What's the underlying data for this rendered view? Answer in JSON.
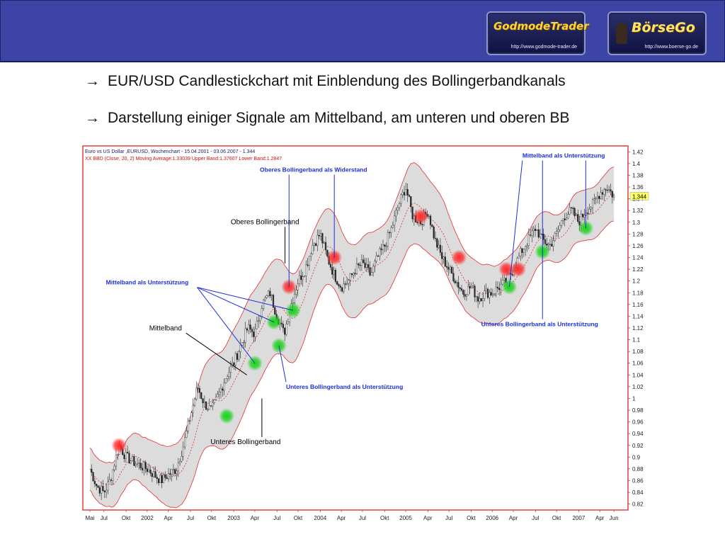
{
  "header": {
    "logo1": {
      "name": "GodmodeTrader",
      "url": "http://www.godmode-trader.de"
    },
    "logo2": {
      "name": "BörseGo",
      "url": "http://www.boerse-go.de"
    }
  },
  "bullets": [
    {
      "arrow": "→",
      "text": "EUR/USD Candlestickchart mit Einblendung des Bollingerbandkanals"
    },
    {
      "arrow": "→",
      "text": "Darstellung einiger Signale am Mittelband, am unteren und oberen BB"
    }
  ],
  "chart_data": {
    "type": "candlestick",
    "title": "Euro vs US Dollar ,EURUSD, Wochenchart - 15.04.2001 - 03.06.2007 - 1.344",
    "subtitle": "XX BBD (Close, 20, 2) Moving Average:1.33039 Upper Band:1.37607 Lower Band:1.2847",
    "last_value_label": "1.344",
    "y_ticks": [
      "1.42",
      "1.4",
      "1.38",
      "1.36",
      "1.34",
      "1.32",
      "1.3",
      "1.28",
      "1.26",
      "1.24",
      "1.22",
      "1.2",
      "1.18",
      "1.16",
      "1.14",
      "1.12",
      "1.1",
      "1.08",
      "1.06",
      "1.04",
      "1.02",
      "1",
      "0.98",
      "0.96",
      "0.94",
      "0.92",
      "0.9",
      "0.88",
      "0.86",
      "0.84",
      "0.82"
    ],
    "ylim": [
      0.81,
      1.43
    ],
    "x_ticks": [
      {
        "label": "Mai",
        "t": 0.0
      },
      {
        "label": "Jul",
        "t": 0.14
      },
      {
        "label": "Okt",
        "t": 0.36
      },
      {
        "label": "2002",
        "t": 0.57
      },
      {
        "label": "Apr",
        "t": 0.78
      },
      {
        "label": "Jul",
        "t": 1.0
      },
      {
        "label": "Okt",
        "t": 1.21
      },
      {
        "label": "2003",
        "t": 1.43
      },
      {
        "label": "Apr",
        "t": 1.64
      },
      {
        "label": "Jul",
        "t": 1.86
      },
      {
        "label": "Okt",
        "t": 2.07
      },
      {
        "label": "2004",
        "t": 2.29
      },
      {
        "label": "Apr",
        "t": 2.5
      },
      {
        "label": "Jul",
        "t": 2.71
      },
      {
        "label": "Okt",
        "t": 2.93
      },
      {
        "label": "2005",
        "t": 3.14
      },
      {
        "label": "Apr",
        "t": 3.36
      },
      {
        "label": "Jul",
        "t": 3.57
      },
      {
        "label": "Okt",
        "t": 3.79
      },
      {
        "label": "2006",
        "t": 4.0
      },
      {
        "label": "Apr",
        "t": 4.21
      },
      {
        "label": "Jul",
        "t": 4.43
      },
      {
        "label": "Okt",
        "t": 4.64
      },
      {
        "label": "2007",
        "t": 4.86
      },
      {
        "label": "Apr",
        "t": 5.07
      },
      {
        "label": "Jun",
        "t": 5.21
      }
    ],
    "t_range": [
      -0.07,
      5.35
    ],
    "price_path": [
      [
        0.0,
        0.88
      ],
      [
        0.07,
        0.85
      ],
      [
        0.14,
        0.84
      ],
      [
        0.2,
        0.86
      ],
      [
        0.29,
        0.92
      ],
      [
        0.36,
        0.9
      ],
      [
        0.45,
        0.89
      ],
      [
        0.57,
        0.88
      ],
      [
        0.64,
        0.87
      ],
      [
        0.71,
        0.86
      ],
      [
        0.78,
        0.87
      ],
      [
        0.86,
        0.88
      ],
      [
        0.93,
        0.92
      ],
      [
        1.0,
        0.97
      ],
      [
        1.07,
        1.02
      ],
      [
        1.14,
        0.99
      ],
      [
        1.21,
        0.98
      ],
      [
        1.29,
        1.01
      ],
      [
        1.36,
        1.04
      ],
      [
        1.43,
        1.06
      ],
      [
        1.5,
        1.09
      ],
      [
        1.57,
        1.12
      ],
      [
        1.64,
        1.11
      ],
      [
        1.71,
        1.16
      ],
      [
        1.79,
        1.18
      ],
      [
        1.86,
        1.14
      ],
      [
        1.93,
        1.11
      ],
      [
        2.0,
        1.16
      ],
      [
        2.07,
        1.2
      ],
      [
        2.14,
        1.22
      ],
      [
        2.21,
        1.26
      ],
      [
        2.29,
        1.28
      ],
      [
        2.36,
        1.24
      ],
      [
        2.43,
        1.21
      ],
      [
        2.5,
        1.19
      ],
      [
        2.57,
        1.2
      ],
      [
        2.64,
        1.22
      ],
      [
        2.71,
        1.23
      ],
      [
        2.79,
        1.21
      ],
      [
        2.86,
        1.24
      ],
      [
        2.93,
        1.26
      ],
      [
        3.0,
        1.29
      ],
      [
        3.07,
        1.33
      ],
      [
        3.14,
        1.36
      ],
      [
        3.21,
        1.31
      ],
      [
        3.29,
        1.3
      ],
      [
        3.36,
        1.32
      ],
      [
        3.43,
        1.27
      ],
      [
        3.5,
        1.24
      ],
      [
        3.57,
        1.22
      ],
      [
        3.64,
        1.2
      ],
      [
        3.71,
        1.18
      ],
      [
        3.79,
        1.19
      ],
      [
        3.86,
        1.17
      ],
      [
        3.93,
        1.18
      ],
      [
        4.0,
        1.18
      ],
      [
        4.07,
        1.19
      ],
      [
        4.14,
        1.2
      ],
      [
        4.21,
        1.22
      ],
      [
        4.29,
        1.25
      ],
      [
        4.36,
        1.27
      ],
      [
        4.43,
        1.29
      ],
      [
        4.5,
        1.27
      ],
      [
        4.57,
        1.26
      ],
      [
        4.64,
        1.28
      ],
      [
        4.71,
        1.31
      ],
      [
        4.79,
        1.32
      ],
      [
        4.86,
        1.3
      ],
      [
        4.93,
        1.32
      ],
      [
        5.0,
        1.33
      ],
      [
        5.07,
        1.35
      ],
      [
        5.14,
        1.36
      ],
      [
        5.21,
        1.344
      ]
    ],
    "band_width": [
      [
        0.0,
        0.036
      ],
      [
        0.5,
        0.04
      ],
      [
        1.0,
        0.06
      ],
      [
        1.4,
        0.09
      ],
      [
        1.9,
        0.08
      ],
      [
        2.3,
        0.065
      ],
      [
        2.9,
        0.06
      ],
      [
        3.2,
        0.07
      ],
      [
        3.7,
        0.05
      ],
      [
        4.2,
        0.05
      ],
      [
        4.6,
        0.04
      ],
      [
        5.21,
        0.046
      ]
    ],
    "signals": [
      {
        "kind": "red",
        "t": 0.29,
        "price": 0.92
      },
      {
        "kind": "green",
        "t": 1.36,
        "price": 0.97
      },
      {
        "kind": "green",
        "t": 1.64,
        "price": 1.06
      },
      {
        "kind": "green",
        "t": 1.83,
        "price": 1.13
      },
      {
        "kind": "green",
        "t": 1.88,
        "price": 1.09
      },
      {
        "kind": "red",
        "t": 1.98,
        "price": 1.19
      },
      {
        "kind": "green",
        "t": 2.02,
        "price": 1.15
      },
      {
        "kind": "red",
        "t": 2.43,
        "price": 1.24
      },
      {
        "kind": "red",
        "t": 3.29,
        "price": 1.31
      },
      {
        "kind": "red",
        "t": 3.67,
        "price": 1.24
      },
      {
        "kind": "red",
        "t": 4.14,
        "price": 1.22
      },
      {
        "kind": "green",
        "t": 4.17,
        "price": 1.19
      },
      {
        "kind": "red",
        "t": 4.26,
        "price": 1.22
      },
      {
        "kind": "green",
        "t": 4.5,
        "price": 1.25
      },
      {
        "kind": "green",
        "t": 4.93,
        "price": 1.29
      }
    ],
    "annotations": [
      {
        "text": "Oberes Bollingerband als Widerstand",
        "color": "blue",
        "t": 1.69,
        "price": 1.386,
        "anchor": "start",
        "targets": [
          [
            1.98,
            1.19
          ],
          [
            2.43,
            1.24
          ]
        ]
      },
      {
        "text": "Mittelband als Unterstützung",
        "color": "blue",
        "t": 4.3,
        "price": 1.41,
        "anchor": "start",
        "targets": [
          [
            4.17,
            1.19
          ],
          [
            4.5,
            1.25
          ],
          [
            4.93,
            1.29
          ]
        ]
      },
      {
        "text": "Oberes Bollingerband",
        "color": "black",
        "t": 1.4,
        "price": 1.297,
        "anchor": "start",
        "targets": [
          [
            1.94,
            1.23
          ]
        ]
      },
      {
        "text": "Mittelband als Unterstützung",
        "color": "blue",
        "t": 0.16,
        "price": 1.194,
        "anchor": "start",
        "targets": [
          [
            1.64,
            1.06
          ],
          [
            1.83,
            1.13
          ],
          [
            2.02,
            1.15
          ]
        ]
      },
      {
        "text": "Mittelband",
        "color": "black",
        "t": 0.59,
        "price": 1.116,
        "anchor": "start",
        "targets": [
          [
            1.56,
            1.04
          ]
        ]
      },
      {
        "text": "Unteres Bollingerband als Unterstützung",
        "color": "blue",
        "t": 1.95,
        "price": 1.016,
        "anchor": "start",
        "targets": [
          [
            1.88,
            1.09
          ]
        ]
      },
      {
        "text": "Unteres Bollingerband",
        "color": "black",
        "t": 1.2,
        "price": 0.922,
        "anchor": "start",
        "targets": [
          [
            1.71,
            1.0
          ]
        ]
      },
      {
        "text": "Unteres Bollingerband als Unterstützung",
        "color": "blue",
        "t": 3.89,
        "price": 1.123,
        "anchor": "start",
        "targets": [
          [
            4.5,
            1.25
          ]
        ]
      }
    ],
    "colors": {
      "band_fill": "#dcdcdc",
      "band_line": "#e03030",
      "candle_up": "#ffffff",
      "candle_down": "#2b2b2b",
      "frame": "#e04040",
      "annotation_blue": "#1d2fd8",
      "annotation_black": "#000000",
      "signal_red": "#ff2a2a",
      "signal_green": "#19d219"
    }
  }
}
